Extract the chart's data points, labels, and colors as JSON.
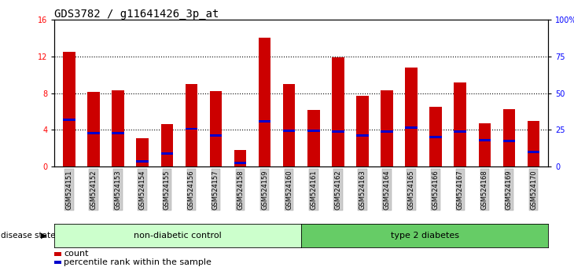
{
  "title": "GDS3782 / g11641426_3p_at",
  "samples": [
    "GSM524151",
    "GSM524152",
    "GSM524153",
    "GSM524154",
    "GSM524155",
    "GSM524156",
    "GSM524157",
    "GSM524158",
    "GSM524159",
    "GSM524160",
    "GSM524161",
    "GSM524162",
    "GSM524163",
    "GSM524164",
    "GSM524165",
    "GSM524166",
    "GSM524167",
    "GSM524168",
    "GSM524169",
    "GSM524170"
  ],
  "count_values": [
    12.5,
    8.1,
    8.3,
    3.1,
    4.6,
    9.0,
    8.2,
    1.8,
    14.0,
    9.0,
    6.2,
    11.9,
    7.7,
    8.3,
    10.8,
    6.5,
    9.2,
    4.7,
    6.3,
    5.0
  ],
  "percentile_positions": [
    5.0,
    3.5,
    3.5,
    0.5,
    1.3,
    4.0,
    3.3,
    0.3,
    4.8,
    3.8,
    3.8,
    3.7,
    3.3,
    3.7,
    4.1,
    3.1,
    3.7,
    2.8,
    2.7,
    1.5
  ],
  "percentile_heights": [
    0.25,
    0.25,
    0.25,
    0.25,
    0.25,
    0.25,
    0.25,
    0.25,
    0.25,
    0.25,
    0.25,
    0.25,
    0.25,
    0.25,
    0.25,
    0.25,
    0.25,
    0.25,
    0.25,
    0.25
  ],
  "bar_color": "#cc0000",
  "percentile_color": "#0000cc",
  "ylim_left": [
    0,
    16
  ],
  "ylim_right": [
    0,
    100
  ],
  "yticks_left": [
    0,
    4,
    8,
    12,
    16
  ],
  "yticks_right": [
    0,
    25,
    50,
    75,
    100
  ],
  "ytick_labels_right": [
    "0",
    "25",
    "50",
    "75",
    "100%"
  ],
  "grid_values": [
    4,
    8,
    12
  ],
  "non_diabetic_count": 10,
  "group1_label": "non-diabetic control",
  "group2_label": "type 2 diabetes",
  "group1_color": "#ccffcc",
  "group2_color": "#66cc66",
  "bar_width": 0.5,
  "legend_count_label": "count",
  "legend_pct_label": "percentile rank within the sample",
  "disease_state_label": "disease state",
  "title_fontsize": 10,
  "tick_fontsize": 7,
  "group_label_fontsize": 8
}
